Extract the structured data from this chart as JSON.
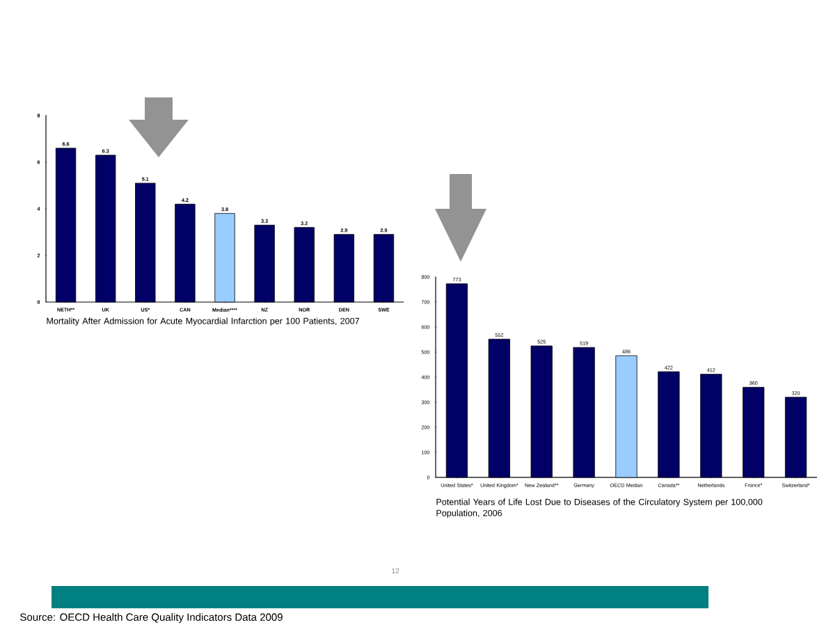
{
  "chart_data": [
    {
      "type": "bar",
      "title": "Mortality After Admission for Acute Myocardial Infarction per 100 Patients, 2007",
      "categories": [
        "NETH**",
        "UK",
        "US*",
        "CAN",
        "Median****",
        "NZ",
        "NOR",
        "DEN",
        "SWE"
      ],
      "values": [
        6.6,
        6.3,
        5.1,
        4.2,
        3.8,
        3.3,
        3.2,
        2.9,
        2.9
      ],
      "colors": [
        "#000066",
        "#000066",
        "#000066",
        "#000066",
        "#99ccff",
        "#000066",
        "#000066",
        "#000066",
        "#000066"
      ],
      "ylim": [
        0,
        8
      ],
      "yticks": [
        0,
        2,
        4,
        6,
        8
      ],
      "data_labels": true,
      "annotations": [
        "12",
        "Source: OECD Health Care Quality Indicators Data 2009"
      ]
    },
    {
      "type": "bar",
      "title": "Potential Years of Life Lost Due to Diseases of the Circulatory System per 100,000 Population, 2006",
      "categories": [
        "United States*",
        "United Kingdom*",
        "New Zealand**",
        "Germany",
        "OECD Median",
        "Canada**",
        "Netherlands",
        "France*",
        "Switzerland*"
      ],
      "values": [
        773,
        552,
        525,
        519,
        486,
        422,
        412,
        360,
        320
      ],
      "colors": [
        "#000066",
        "#000066",
        "#000066",
        "#000066",
        "#99ccff",
        "#000066",
        "#000066",
        "#000066",
        "#000066"
      ],
      "ylim": [
        0,
        800
      ],
      "yticks": [
        0,
        100,
        200,
        300,
        400,
        500,
        600,
        700,
        800
      ],
      "data_labels": true
    }
  ]
}
